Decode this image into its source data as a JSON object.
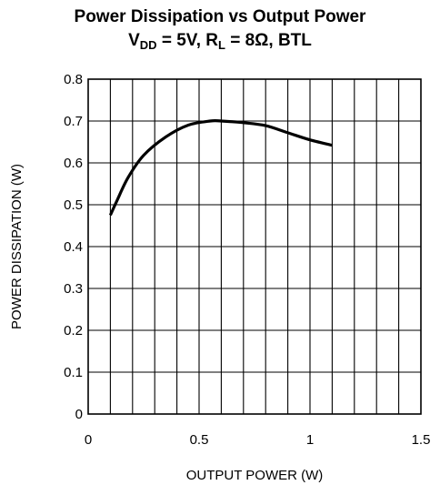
{
  "header": {
    "line1": "Power Dissipation vs Output Power",
    "vdd_prefix": "V",
    "vdd_sub": "DD",
    "vdd_value": " = 5V, R",
    "rl_sub": "L",
    "rest": " = 8Ω, BTL"
  },
  "chart_data": {
    "type": "line",
    "title": "Power Dissipation vs Output Power",
    "subtitle": "VDD = 5V, RL = 8Ω, BTL",
    "xlabel": "OUTPUT POWER (W)",
    "ylabel": "POWER DISSIPATION (W)",
    "xlim": [
      0,
      1.5
    ],
    "ylim": [
      0,
      0.8
    ],
    "xticks": [
      0,
      0.5,
      1,
      1.5
    ],
    "xtick_labels": [
      "0",
      "0.5",
      "1",
      "1.5"
    ],
    "yticks": [
      0,
      0.1,
      0.2,
      0.3,
      0.4,
      0.5,
      0.6,
      0.7,
      0.8
    ],
    "ytick_labels": [
      "0",
      "0.1",
      "0.2",
      "0.3",
      "0.4",
      "0.5",
      "0.6",
      "0.7",
      "0.8"
    ],
    "grid": true,
    "grid_x_step": 0.1,
    "grid_y_step": 0.1,
    "series": [
      {
        "x": [
          0.1,
          0.13,
          0.18,
          0.25,
          0.35,
          0.45,
          0.55,
          0.6,
          0.7,
          0.8,
          0.9,
          1.0,
          1.1
        ],
        "y": [
          0.475,
          0.51,
          0.565,
          0.618,
          0.662,
          0.69,
          0.7,
          0.7,
          0.696,
          0.689,
          0.672,
          0.655,
          0.642
        ]
      }
    ]
  }
}
